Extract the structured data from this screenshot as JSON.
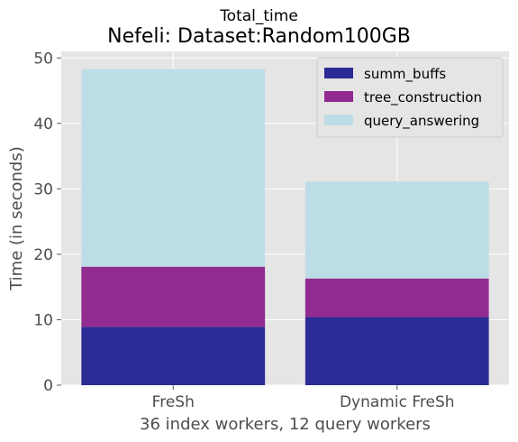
{
  "chart_data": {
    "type": "bar",
    "stacked": true,
    "suptitle": "Total_time",
    "title": "Nefeli: Dataset:Random100GB",
    "xlabel": "36 index workers, 12 query workers",
    "ylabel": "Time (in seconds)",
    "categories": [
      "FreSh",
      "Dynamic FreSh"
    ],
    "ylim": [
      0,
      51
    ],
    "yticks": [
      0,
      10,
      20,
      30,
      40,
      50
    ],
    "grid": true,
    "legend_position": "top-right",
    "series": [
      {
        "name": "summ_buffs",
        "values": [
          8.9,
          10.4
        ],
        "color": "#2b2b96"
      },
      {
        "name": "tree_construction",
        "values": [
          9.2,
          5.9
        ],
        "color": "#912b91"
      },
      {
        "name": "query_answering",
        "values": [
          30.2,
          14.8
        ],
        "color": "#bcdde6"
      }
    ],
    "background_color": "#e5e5e5"
  }
}
